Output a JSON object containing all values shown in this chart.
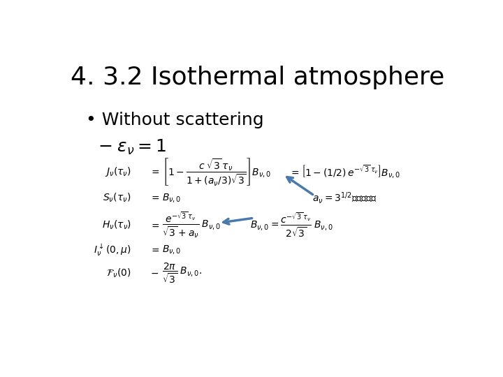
{
  "title": "4. 3.2 Isothermal atmosphere",
  "bg_color": "#ffffff",
  "title_fontsize": 26,
  "bullet_fontsize": 18,
  "dash_fontsize": 18,
  "eq_fontsize": 10,
  "annot_fontsize": 10,
  "arrow_color": "#4a7aab"
}
